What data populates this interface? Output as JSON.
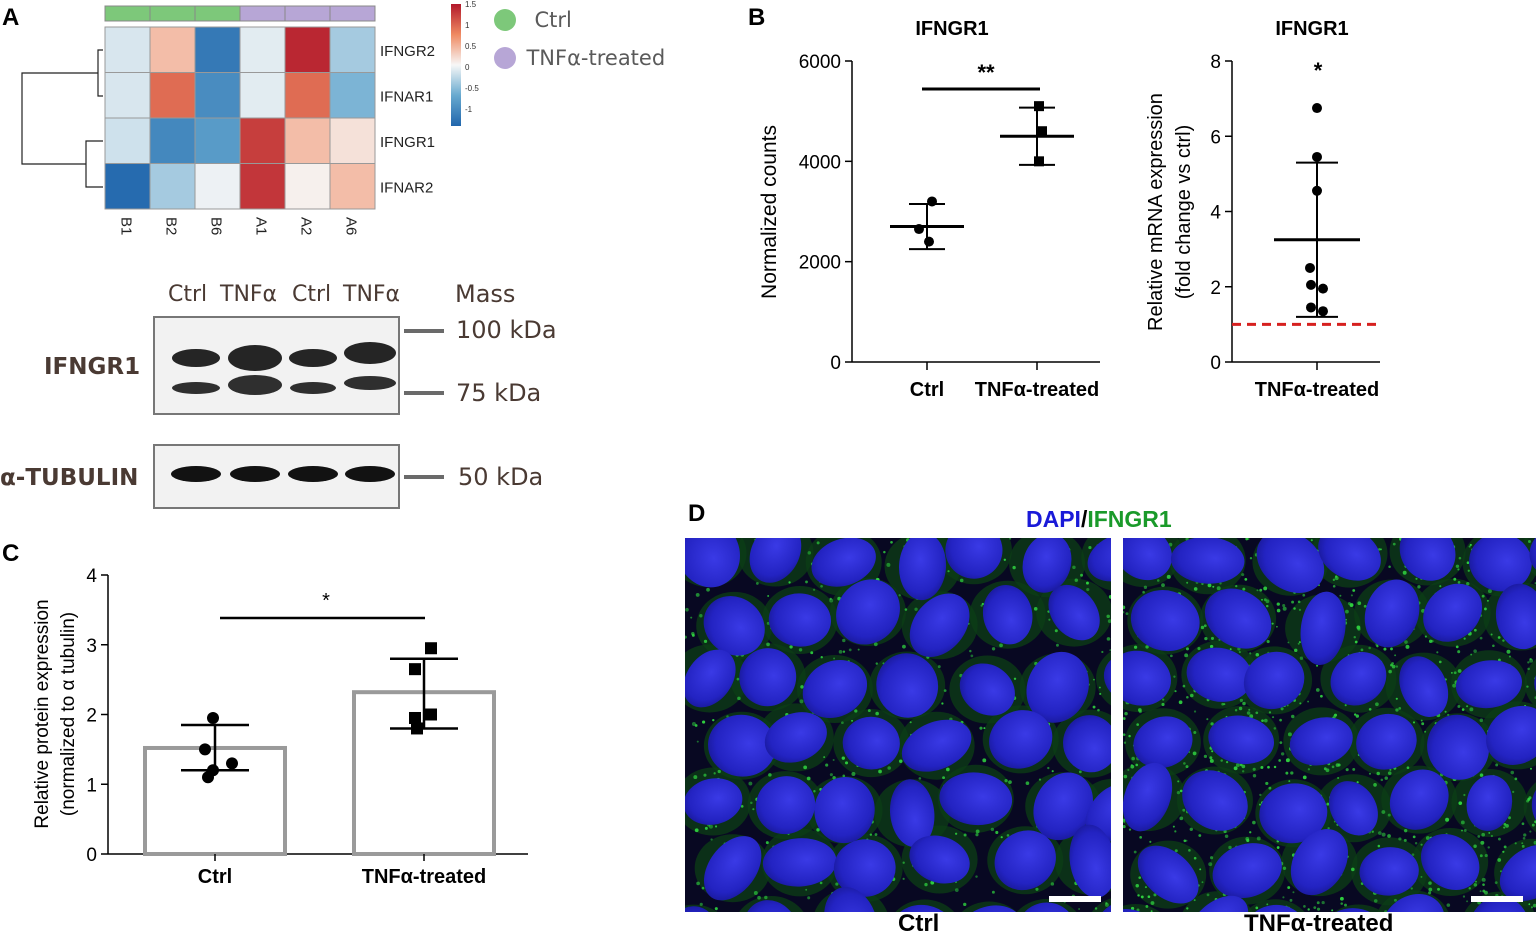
{
  "panels": {
    "a": "A",
    "b": "B",
    "c": "C",
    "d": "D"
  },
  "colors": {
    "ctrl": "#7dc87a",
    "tnf": "#b7a6d6",
    "dashed": "#d6201f",
    "dapi": "#1a1ad8",
    "ifngr1": "#1a9a2a"
  },
  "heatmap": {
    "rows": [
      "IFNGR2",
      "IFNAR1",
      "IFNGR1",
      "IFNAR2"
    ],
    "cols": [
      "B1",
      "B2",
      "B6",
      "A1",
      "A2",
      "A6"
    ],
    "col_groups": [
      "ctrl",
      "ctrl",
      "ctrl",
      "tnf",
      "tnf",
      "tnf"
    ],
    "values": [
      [
        -0.15,
        0.4,
        -1.2,
        -0.1,
        1.4,
        -0.4
      ],
      [
        -0.15,
        0.95,
        -1.0,
        -0.1,
        0.95,
        -0.6
      ],
      [
        -0.2,
        -1.05,
        -0.85,
        1.25,
        0.4,
        0.15
      ],
      [
        -1.35,
        -0.4,
        -0.05,
        1.3,
        0.05,
        0.4
      ]
    ],
    "scale_ticks": [
      "1.5",
      "1",
      "0.5",
      "0",
      "-0.5",
      "-1"
    ],
    "scale_values": [
      1.5,
      1,
      0.5,
      0,
      -0.5,
      -1
    ],
    "scale_range": [
      -1.4,
      1.5
    ],
    "legend": [
      {
        "label": "Ctrl",
        "color": "ctrl"
      },
      {
        "label": "TNFα-treated",
        "color": "tnf"
      }
    ]
  },
  "blot": {
    "lanes": [
      "Ctrl",
      "TNFα",
      "Ctrl",
      "TNFα"
    ],
    "mass_header": "Mass",
    "proteins": [
      "IFNGR1",
      "α-TUBULIN"
    ],
    "markers": [
      "100 kDa",
      "75 kDa",
      "50 kDa"
    ]
  },
  "chart_data": [
    {
      "type": "scatter",
      "panel": "B",
      "title": "IFNGR1",
      "ylabel": "Normalized counts",
      "categories": [
        "Ctrl",
        "TNFα-treated"
      ],
      "ylim": [
        0,
        6000
      ],
      "yticks": [
        0,
        2000,
        4000,
        6000
      ],
      "series": [
        {
          "points": [
            3200,
            2650,
            2400
          ],
          "mean": 2700,
          "sd_low": 2250,
          "sd_high": 3150,
          "marker": "circle"
        },
        {
          "points": [
            5100,
            4600,
            4000
          ],
          "mean": 4500,
          "sd_low": 3930,
          "sd_high": 5070,
          "marker": "square"
        }
      ],
      "significance": {
        "label": "**",
        "between": [
          0,
          1
        ]
      }
    },
    {
      "type": "scatter",
      "panel": "B",
      "title": "IFNGR1",
      "ylabel": [
        "Relative mRNA expression",
        "(fold change vs ctrl)"
      ],
      "categories": [
        "TNFα-treated"
      ],
      "ylim": [
        0,
        8
      ],
      "yticks": [
        0,
        2,
        4,
        6,
        8
      ],
      "series": [
        {
          "points": [
            6.75,
            5.45,
            4.55,
            2.5,
            2.05,
            1.95,
            1.45,
            1.35
          ],
          "mean": 3.25,
          "sd_low": 1.2,
          "sd_high": 5.3,
          "marker": "circle"
        }
      ],
      "reference_line": 1,
      "significance": {
        "label": "*"
      }
    },
    {
      "type": "bar",
      "panel": "C",
      "ylabel": [
        "Relative protein expression",
        "(normalized to α tubulin)"
      ],
      "categories": [
        "Ctrl",
        "TNFα-treated"
      ],
      "values": [
        1.52,
        2.32
      ],
      "ylim": [
        0,
        4
      ],
      "yticks": [
        0,
        1,
        2,
        3,
        4
      ],
      "errors": [
        {
          "low": 1.2,
          "high": 1.85
        },
        {
          "low": 1.8,
          "high": 2.8
        }
      ],
      "points": [
        [
          1.95,
          1.5,
          1.3,
          1.2,
          1.1
        ],
        [
          2.95,
          2.65,
          2.0,
          1.8,
          1.95
        ]
      ],
      "markers": [
        "circle",
        "square"
      ],
      "significance": {
        "label": "*",
        "between": [
          0,
          1
        ]
      }
    }
  ],
  "microscopy": {
    "title_a": "DAPI",
    "title_sep": "/",
    "title_b": "IFNGR1",
    "labels": [
      "Ctrl",
      "TNFα-treated"
    ]
  }
}
